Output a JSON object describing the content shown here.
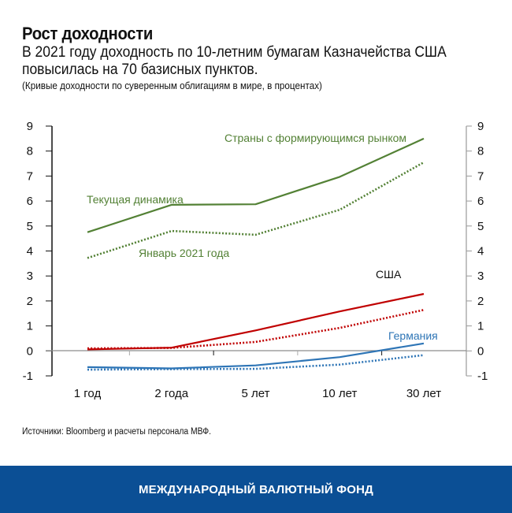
{
  "header": {
    "title": "Рост доходности",
    "subtitle": "В 2021 году доходность по 10-летним бумагам Казначейства США повысилась на 70 базисных пунктов.",
    "note": "(Кривые доходности по суверенным облигациям в мире, в процентах)"
  },
  "labels": {
    "emerging": "Страны с формирующимся рынком",
    "current": "Текущая динамика",
    "january": "Январь 2021 года",
    "usa": "США",
    "germany": "Германия"
  },
  "colors": {
    "emerging": "#538135",
    "usa": "#c00000",
    "germany": "#2e75b6",
    "footer": "#0b4f95"
  },
  "source": "Источники: Bloomberg и расчеты персонала МВФ.",
  "footer": {
    "org_name": "МЕЖДУНАРОДНЫЙ ВАЛЮТНЫЙ ФОНД"
  },
  "chart_data": {
    "type": "line",
    "title": "Рост доходности",
    "subtitle": "В 2021 году доходность по 10-летним бумагам Казначейства США повысилась на 70 базисных пунктов.",
    "xlabel": "",
    "ylabel": "Проценты",
    "categories": [
      "1 год",
      "2 года",
      "5 лет",
      "10 лет",
      "30 лет"
    ],
    "ylim": [
      -1,
      9
    ],
    "yticks": [
      9,
      8,
      7,
      6,
      5,
      4,
      3,
      2,
      1,
      0,
      -1
    ],
    "grid": false,
    "dual_axis_mirrored": true,
    "series": [
      {
        "name": "Страны с формирующимся рынком — Текущая динамика",
        "style": "solid",
        "color": "#538135",
        "values": [
          4.75,
          5.85,
          5.87,
          6.97,
          8.5
        ]
      },
      {
        "name": "Страны с формирующимся рынком — Январь 2021 года",
        "style": "dotted",
        "color": "#538135",
        "values": [
          3.72,
          4.8,
          4.65,
          5.65,
          7.55
        ]
      },
      {
        "name": "США — Текущая динамика",
        "style": "solid",
        "color": "#c00000",
        "values": [
          0.06,
          0.13,
          0.82,
          1.58,
          2.28
        ]
      },
      {
        "name": "США — Январь 2021 года",
        "style": "dotted",
        "color": "#c00000",
        "values": [
          0.1,
          0.12,
          0.36,
          0.92,
          1.64
        ]
      },
      {
        "name": "Германия — Текущая динамика",
        "style": "solid",
        "color": "#2e75b6",
        "values": [
          -0.65,
          -0.7,
          -0.58,
          -0.25,
          0.3
        ]
      },
      {
        "name": "Германия — Январь 2021 года",
        "style": "dotted",
        "color": "#2e75b6",
        "values": [
          -0.75,
          -0.73,
          -0.72,
          -0.55,
          -0.17
        ]
      }
    ],
    "annotations": [
      "Страны с формирующимся рынком",
      "Текущая динамика",
      "Январь 2021 года",
      "США",
      "Германия"
    ],
    "source": "Источники: Bloomberg и расчеты персонала МВФ."
  }
}
